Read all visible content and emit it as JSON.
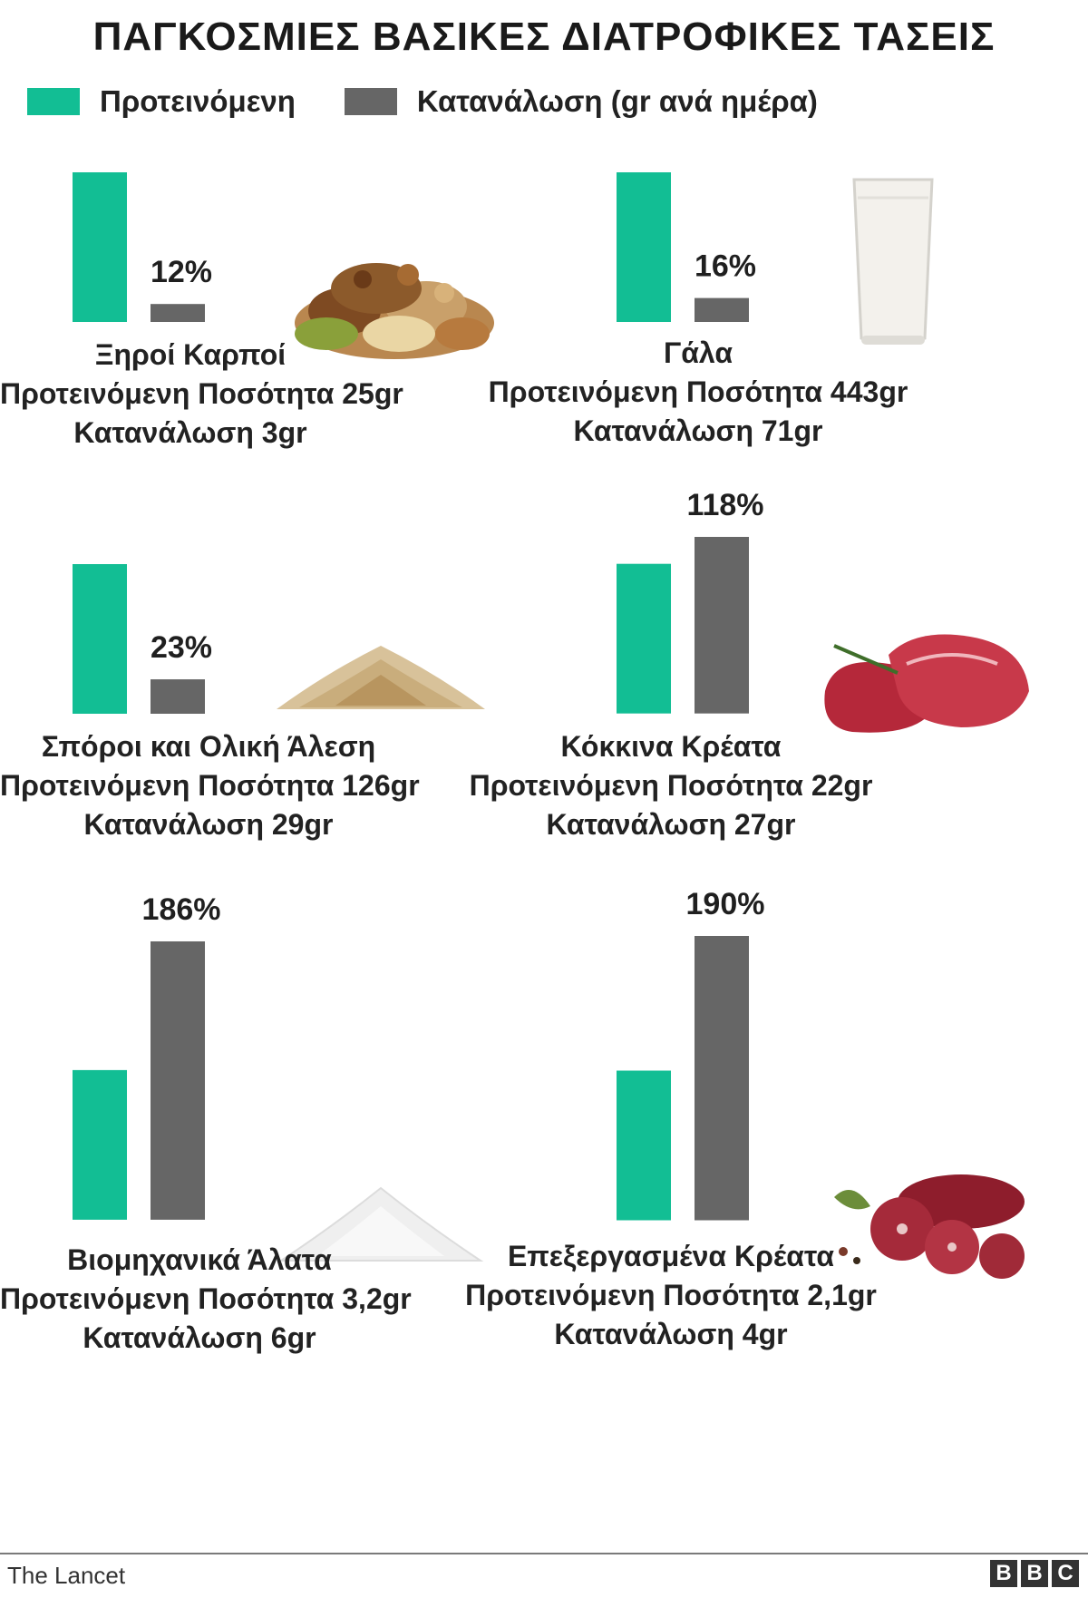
{
  "title": "ΠΑΓΚΟΣΜΙΕΣ  ΒΑΣΙΚΕΣ ΔΙΑΤΡΟΦΙΚΕΣ ΤΑΣΕΙΣ",
  "legend": {
    "recommended": "Προτεινόμενη",
    "consumption": "Κατανάλωση (gr ανά ημέρα)"
  },
  "colors": {
    "recommended": "#12be94",
    "consumption": "#666666"
  },
  "chart_data": [
    {
      "type": "bar",
      "category": "Ξηροί Καρποί",
      "percent_label": "12%",
      "series": [
        {
          "name": "Προτεινόμενη",
          "value": 100
        },
        {
          "name": "Κατανάλωση",
          "value": 12
        }
      ],
      "line1": "Ξηροί Καρποί",
      "line2": "Προτεινόμενη Ποσότητα  25gr",
      "line3": "Κατανάλωση  3gr",
      "image": "nuts-icon"
    },
    {
      "type": "bar",
      "category": "Γάλα",
      "percent_label": "16%",
      "series": [
        {
          "name": "Προτεινόμενη",
          "value": 100
        },
        {
          "name": "Κατανάλωση",
          "value": 16
        }
      ],
      "line1": "Γάλα",
      "line2": "Προτεινόμενη Ποσότητα  443gr",
      "line3": "Κατανάλωση  71gr",
      "image": "milk-glass-icon"
    },
    {
      "type": "bar",
      "category": "Σπόροι και Ολική Άλεση",
      "percent_label": "23%",
      "series": [
        {
          "name": "Προτεινόμενη",
          "value": 100
        },
        {
          "name": "Κατανάλωση",
          "value": 23
        }
      ],
      "line1": "Σπόροι και Ολική Άλεση",
      "line2": "Προτεινόμενη Ποσότητα  126gr",
      "line3": "Κατανάλωση  29gr",
      "image": "grains-icon"
    },
    {
      "type": "bar",
      "category": "Κόκκινα Κρέατα",
      "percent_label": "118%",
      "series": [
        {
          "name": "Προτεινόμενη",
          "value": 100
        },
        {
          "name": "Κατανάλωση",
          "value": 118
        }
      ],
      "line1": "Κόκκινα Κρέατα",
      "line2": "Προτεινόμενη Ποσότητα  22gr",
      "line3": "Κατανάλωση  27gr",
      "image": "red-meat-icon"
    },
    {
      "type": "bar",
      "category": "Βιομηχανικά Άλατα",
      "percent_label": "186%",
      "series": [
        {
          "name": "Προτεινόμενη",
          "value": 100
        },
        {
          "name": "Κατανάλωση",
          "value": 186
        }
      ],
      "line1": "Βιομηχανικά Άλατα",
      "line2": "Προτεινόμενη Ποσότητα 3,2gr",
      "line3": "Κατανάλωση  6gr",
      "image": "salt-pile-icon"
    },
    {
      "type": "bar",
      "category": "Επεξεργασμένα Κρέατα",
      "percent_label": "190%",
      "series": [
        {
          "name": "Προτεινόμενη",
          "value": 100
        },
        {
          "name": "Κατανάλωση",
          "value": 190
        }
      ],
      "line1": "Επεξεργασμένα Κρέατα",
      "line2": "Προτεινόμενη Ποσότητα 2,1gr",
      "line3": "Κατανάλωση  4gr",
      "image": "sausage-icon"
    }
  ],
  "footer": {
    "source": "The Lancet",
    "logo": [
      "B",
      "B",
      "C"
    ]
  }
}
